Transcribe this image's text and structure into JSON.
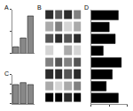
{
  "chart_data": [
    {
      "type": "bar",
      "title": "A",
      "categories": [
        null,
        null,
        null
      ],
      "values": [
        0.15,
        0.35,
        0.85
      ],
      "color": "#888888",
      "ylim": [
        0,
        1
      ],
      "yticks": [
        0,
        0.5,
        1
      ],
      "tick_labels": false
    },
    {
      "type": "bar",
      "title": "C",
      "categories": [
        null,
        null,
        null
      ],
      "values": [
        1.0,
        1.1,
        1.0
      ],
      "color": "#888888",
      "ylim": [
        0,
        1.5
      ],
      "yticks": [
        0,
        0.5,
        1,
        1.5
      ],
      "tick_labels": false
    },
    {
      "type": "heatmap",
      "title": "B",
      "cells": [
        [
          0.8,
          0.7,
          0.8,
          0.6
        ],
        [
          0.5,
          0.6,
          0.4,
          0.5
        ],
        [
          0.7,
          0.8,
          0.7,
          0.8
        ],
        [
          0.4,
          0.3,
          0.5,
          0.4
        ],
        [
          0.6,
          0.7,
          0.6,
          0.7
        ],
        [
          0.8,
          0.8,
          0.7,
          0.8
        ],
        [
          0.5,
          0.4,
          0.5,
          0.6
        ],
        [
          0.9,
          0.9,
          0.8,
          0.9
        ]
      ],
      "tick_labels": false
    },
    {
      "type": "bar",
      "title": "D",
      "orientation": "horizontal",
      "categories": [
        null,
        null,
        null,
        null,
        null,
        null,
        null,
        null
      ],
      "values": [
        0.9,
        0.6,
        0.8,
        0.4,
        1.0,
        0.7,
        0.5,
        0.9
      ],
      "color": "#000000",
      "xlim": [
        0,
        1.2
      ],
      "xticks": [
        0,
        0.6,
        1.2
      ],
      "tick_labels": false
    }
  ]
}
